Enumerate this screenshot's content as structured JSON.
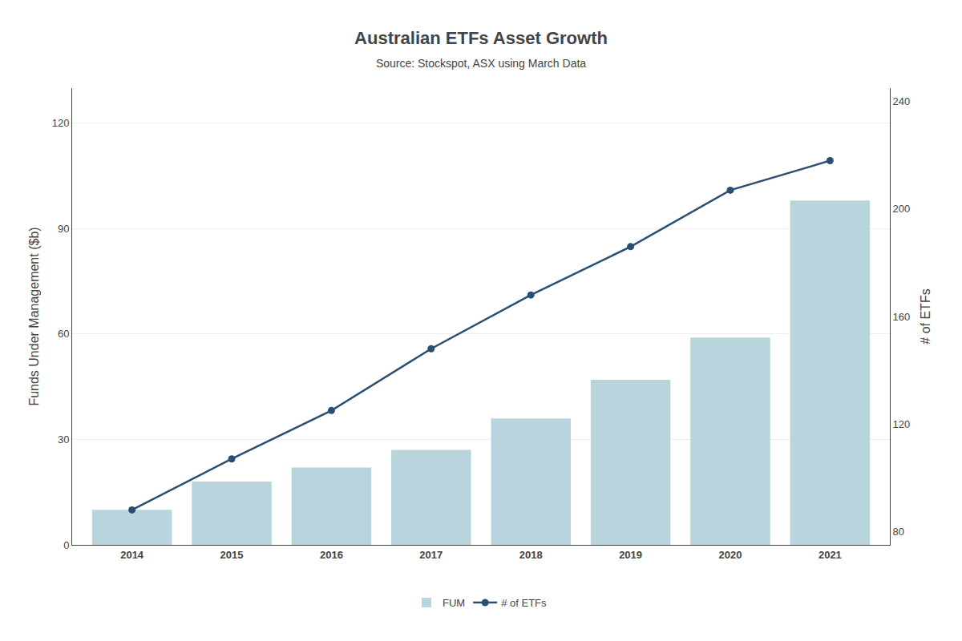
{
  "chart_data": {
    "type": "bar",
    "title": "Australian ETFs Asset Growth",
    "subtitle": "Source: Stockspot, ASX using March Data",
    "x": [
      2014,
      2015,
      2016,
      2017,
      2018,
      2019,
      2020,
      2021
    ],
    "series": [
      {
        "name": "FUM",
        "type": "bar",
        "color": "#b8d4dc",
        "values": [
          10,
          18,
          22,
          27,
          36,
          47,
          59,
          98
        ]
      },
      {
        "name": "# of ETFs",
        "type": "line",
        "color": "#2b4f72",
        "marker": "circle",
        "axis": "y2",
        "values": [
          88,
          107,
          125,
          148,
          168,
          186,
          207,
          218
        ]
      }
    ],
    "xlim": [
      2013.4,
      2021.6
    ],
    "xticks": [
      2014,
      2015,
      2016,
      2017,
      2018,
      2019,
      2020,
      2021
    ],
    "ylim": [
      0,
      130
    ],
    "yticks": [
      0,
      30,
      60,
      90,
      120
    ],
    "y2lim": [
      75,
      245
    ],
    "y2ticks": [
      80,
      120,
      160,
      200,
      240
    ],
    "ylabel": "Funds Under Management ($b)",
    "y2label": "# of ETFs",
    "grid": true,
    "legend": "bottom"
  }
}
